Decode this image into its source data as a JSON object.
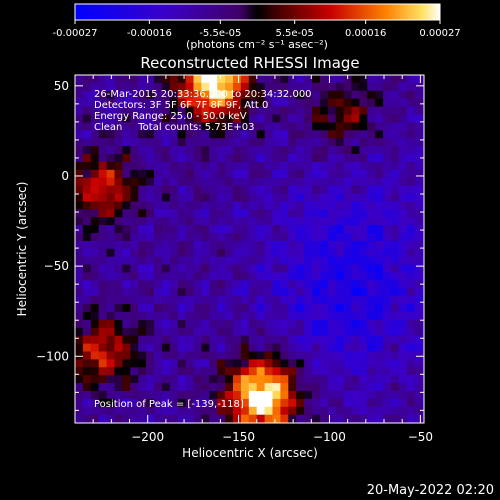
{
  "chart_data": {
    "type": "heatmap",
    "title": "Reconstructed RHESSI Image",
    "xlabel": "Heliocentric X (arcsec)",
    "ylabel": "Heliocentric Y (arcsec)",
    "xlim": [
      -240,
      -48
    ],
    "ylim": [
      -137,
      56
    ],
    "x_ticks": [
      -200,
      -150,
      -100,
      -50
    ],
    "y_ticks": [
      -100,
      -50,
      0,
      50
    ],
    "colorbar": {
      "label": "(photons cm⁻² s⁻¹ asec⁻²)",
      "range": [
        -0.00027,
        0.00027
      ],
      "tick_values": [
        -0.00027,
        -0.00016,
        -5.5e-05,
        5.5e-05,
        0.00016,
        0.00027
      ],
      "tick_labels": [
        "-0.00027",
        "-0.00016",
        "-5.5e-05",
        "5.5e-05",
        "0.00016",
        "0.00027"
      ]
    },
    "annotations": [
      "26-Mar-2015 20:33:36.000 to 20:34:32.000",
      "Detectors: 3F 5F 6F 7F 8F 9F, Att 0",
      "Energy Range: 25.0 - 50.0 keV",
      "Clean     Total counts: 5.73E+03"
    ],
    "peak_label": "Position of Peak = [-139,-118]",
    "sources": [
      {
        "x": -165,
        "y": 52,
        "intensity": 0.00026
      },
      {
        "x": -139,
        "y": -118,
        "intensity": 0.00027
      },
      {
        "x": -225,
        "y": -5,
        "intensity": 0.00014
      },
      {
        "x": -225,
        "y": -95,
        "intensity": 0.00014
      },
      {
        "x": -95,
        "y": 35,
        "intensity": 9e-05
      }
    ]
  },
  "timestamp": "20-May-2022 02:20"
}
